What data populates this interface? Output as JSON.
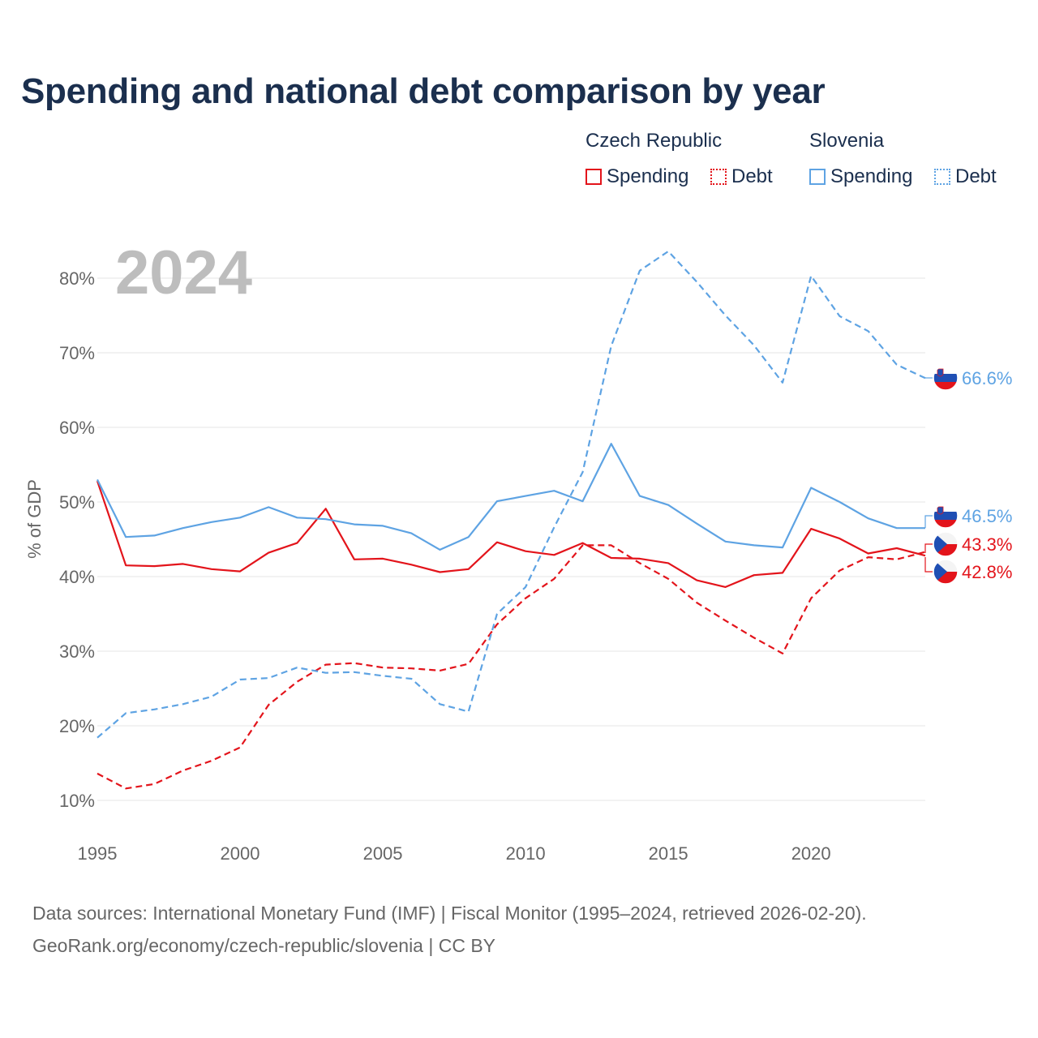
{
  "title": "Spending and national debt comparison by year",
  "legend": {
    "groups": [
      {
        "country": "Czech Republic",
        "spending_label": "Spending",
        "debt_label": "Debt",
        "color": "#e3141b"
      },
      {
        "country": "Slovenia",
        "spending_label": "Spending",
        "debt_label": "Debt",
        "color": "#5ea3e3"
      }
    ]
  },
  "footer": {
    "line1": "Data sources: International Monetary Fund (IMF) | Fiscal Monitor (1995–2024, retrieved 2026-02-20).",
    "line2": "GeoRank.org/economy/czech-republic/slovenia | CC BY"
  },
  "chart_data": {
    "type": "line",
    "title": "Spending and national debt comparison by year",
    "year_label": "2024",
    "ylabel": "% of GDP",
    "xlabel": "",
    "xlim": [
      1995,
      2024
    ],
    "ylim": [
      10,
      85
    ],
    "x_ticks": [
      1995,
      2000,
      2005,
      2010,
      2015,
      2020
    ],
    "y_ticks": [
      10,
      20,
      30,
      40,
      50,
      60,
      70,
      80
    ],
    "y_tick_labels": [
      "10%",
      "20%",
      "30%",
      "40%",
      "50%",
      "60%",
      "70%",
      "80%"
    ],
    "grid": true,
    "x": [
      1995,
      1996,
      1997,
      1998,
      1999,
      2000,
      2001,
      2002,
      2003,
      2004,
      2005,
      2006,
      2007,
      2008,
      2009,
      2010,
      2011,
      2012,
      2013,
      2014,
      2015,
      2016,
      2017,
      2018,
      2019,
      2020,
      2021,
      2022,
      2023,
      2024
    ],
    "series": [
      {
        "name": "Czech Republic Spending",
        "country": "Czech Republic",
        "metric": "Spending",
        "color": "#e3141b",
        "dash": "solid",
        "values": [
          52.8,
          41.5,
          41.4,
          41.7,
          41.0,
          40.7,
          43.2,
          44.5,
          49.1,
          42.3,
          42.4,
          41.6,
          40.6,
          41.0,
          44.6,
          43.4,
          42.9,
          44.5,
          42.5,
          42.4,
          41.8,
          39.5,
          38.6,
          40.2,
          40.5,
          46.4,
          45.1,
          43.1,
          43.8,
          42.8
        ],
        "end_label": "42.8%"
      },
      {
        "name": "Czech Republic Debt",
        "country": "Czech Republic",
        "metric": "Debt",
        "color": "#e3141b",
        "dash": "dashed",
        "values": [
          13.6,
          11.6,
          12.2,
          14.0,
          15.3,
          17.1,
          22.8,
          25.9,
          28.2,
          28.4,
          27.8,
          27.7,
          27.4,
          28.3,
          33.6,
          37.1,
          39.7,
          44.2,
          44.2,
          41.8,
          39.7,
          36.5,
          34.1,
          31.8,
          29.7,
          37.1,
          40.8,
          42.6,
          42.3,
          43.3
        ],
        "end_label": "43.3%"
      },
      {
        "name": "Slovenia Spending",
        "country": "Slovenia",
        "metric": "Spending",
        "color": "#5ea3e3",
        "dash": "solid",
        "values": [
          53.0,
          45.3,
          45.5,
          46.5,
          47.3,
          47.9,
          49.3,
          47.9,
          47.7,
          47.0,
          46.8,
          45.8,
          43.6,
          45.3,
          50.1,
          50.8,
          51.5,
          50.1,
          57.8,
          50.8,
          49.6,
          47.1,
          44.7,
          44.2,
          43.9,
          51.9,
          50.0,
          47.8,
          46.5,
          46.5
        ],
        "end_label": "46.5%"
      },
      {
        "name": "Slovenia Debt",
        "country": "Slovenia",
        "metric": "Debt",
        "color": "#5ea3e3",
        "dash": "dashed",
        "values": [
          18.4,
          21.7,
          22.2,
          22.9,
          23.9,
          26.2,
          26.4,
          27.8,
          27.1,
          27.2,
          26.7,
          26.3,
          22.9,
          21.9,
          35.0,
          38.6,
          46.6,
          54.0,
          70.9,
          81.0,
          83.6,
          79.5,
          75.0,
          71.0,
          66.0,
          80.3,
          74.9,
          72.9,
          68.4,
          66.6
        ],
        "end_label": "66.6%"
      }
    ]
  }
}
